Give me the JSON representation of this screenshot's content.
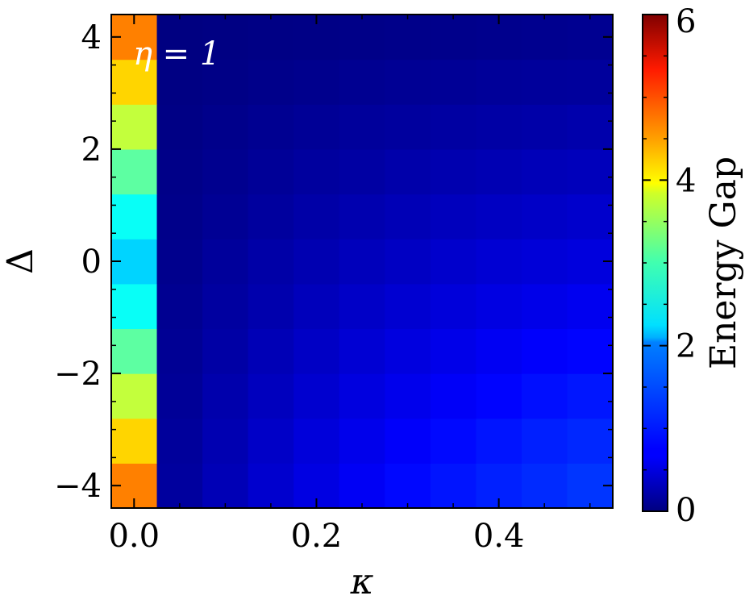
{
  "chart_data": {
    "type": "heatmap",
    "xlabel": "κ",
    "ylabel": "Δ",
    "annotation": "η = 1",
    "xlim": [
      -0.025,
      0.525
    ],
    "ylim": [
      -4.4,
      4.4
    ],
    "xticks": [
      0.0,
      0.2,
      0.4
    ],
    "xtick_labels": [
      "0.0",
      "0.2",
      "0.4"
    ],
    "yticks": [
      -4,
      -2,
      0,
      2,
      4
    ],
    "ytick_labels": [
      "−4",
      "−2",
      "0",
      "2",
      "4"
    ],
    "x": [
      0.0,
      0.05,
      0.1,
      0.15,
      0.2,
      0.25,
      0.3,
      0.35,
      0.4,
      0.45,
      0.5
    ],
    "y": [
      -4,
      -3.2,
      -2.4,
      -1.6,
      -0.8,
      0,
      0.8,
      1.6,
      2.4,
      3.2,
      4
    ],
    "z": [
      [
        4.5,
        0.18,
        0.32,
        0.46,
        0.58,
        0.69,
        0.79,
        0.87,
        0.94,
        1.0,
        1.06
      ],
      [
        4.0,
        0.16,
        0.29,
        0.42,
        0.53,
        0.63,
        0.72,
        0.8,
        0.87,
        0.93,
        0.98
      ],
      [
        3.4,
        0.14,
        0.26,
        0.37,
        0.47,
        0.56,
        0.64,
        0.71,
        0.77,
        0.83,
        0.88
      ],
      [
        2.8,
        0.12,
        0.22,
        0.32,
        0.41,
        0.49,
        0.56,
        0.62,
        0.68,
        0.73,
        0.77
      ],
      [
        2.3,
        0.1,
        0.19,
        0.27,
        0.35,
        0.42,
        0.48,
        0.53,
        0.58,
        0.62,
        0.66
      ],
      [
        2.0,
        0.08,
        0.16,
        0.23,
        0.29,
        0.35,
        0.4,
        0.45,
        0.49,
        0.52,
        0.55
      ],
      [
        2.3,
        0.06,
        0.12,
        0.18,
        0.23,
        0.28,
        0.32,
        0.36,
        0.39,
        0.42,
        0.45
      ],
      [
        2.8,
        0.05,
        0.09,
        0.14,
        0.18,
        0.21,
        0.25,
        0.28,
        0.3,
        0.33,
        0.35
      ],
      [
        3.4,
        0.03,
        0.07,
        0.1,
        0.13,
        0.16,
        0.18,
        0.2,
        0.22,
        0.24,
        0.26
      ],
      [
        4.0,
        0.02,
        0.04,
        0.06,
        0.08,
        0.1,
        0.12,
        0.13,
        0.15,
        0.16,
        0.17
      ],
      [
        4.5,
        0.01,
        0.02,
        0.03,
        0.04,
        0.05,
        0.06,
        0.07,
        0.08,
        0.09,
        0.1
      ]
    ],
    "colorbar": {
      "label": "Energy Gap",
      "range": [
        0,
        6
      ],
      "ticks": [
        0,
        2,
        4,
        6
      ],
      "tick_labels": [
        "0",
        "2",
        "4",
        "6"
      ],
      "colormap": "jet"
    }
  }
}
